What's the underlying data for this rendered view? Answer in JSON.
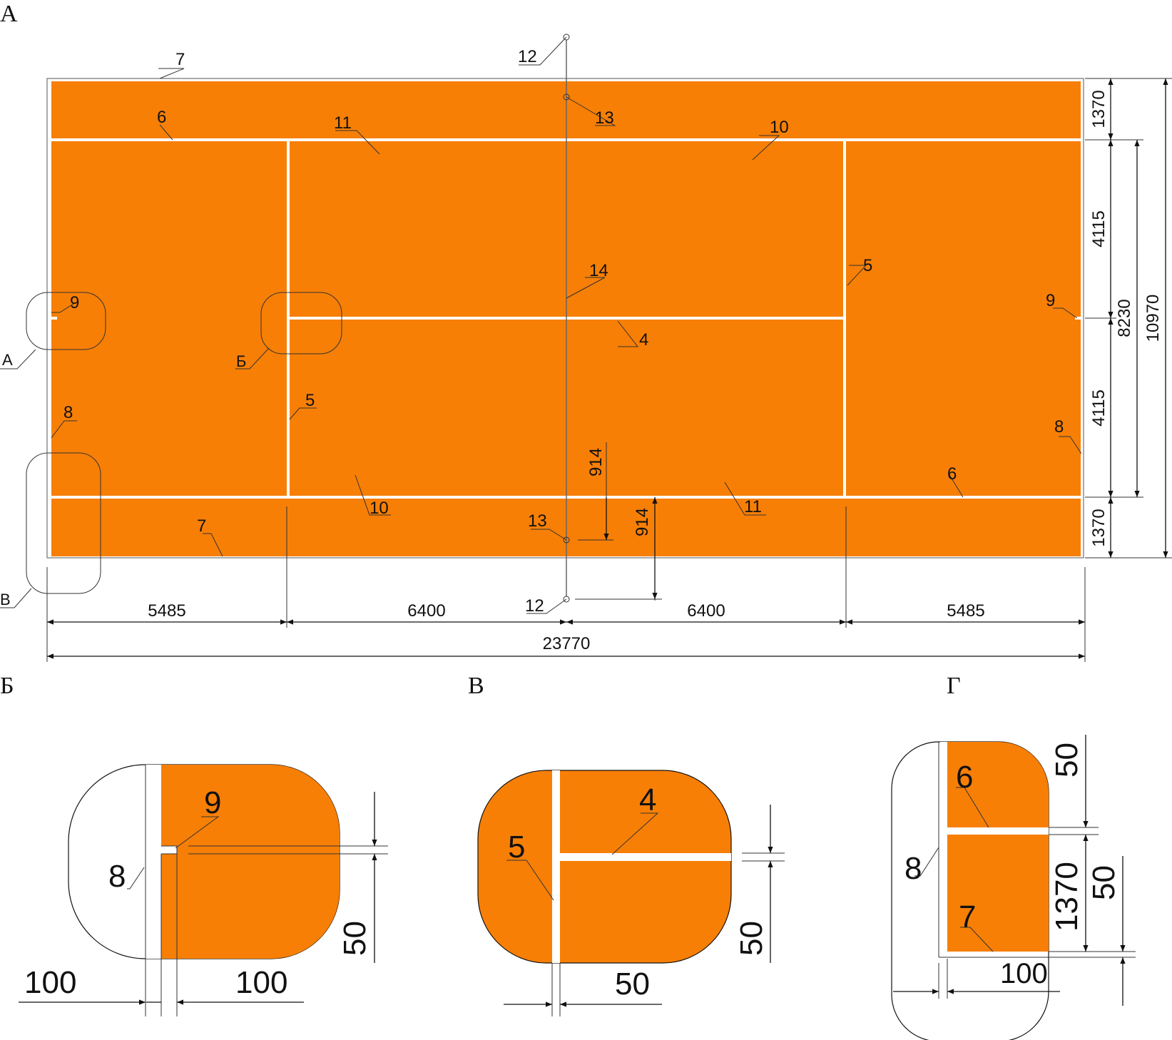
{
  "colors": {
    "court": "#f77f06",
    "lines": "#ffffff",
    "ink": "#111111"
  },
  "sections": {
    "a": "А",
    "b": "Б",
    "v": "В",
    "g": "Г"
  },
  "callouts": {
    "a": "А",
    "b": "Б",
    "v": "В"
  },
  "main": {
    "labels": {
      "l4": "4",
      "l5a": "5",
      "l5b": "5",
      "l6a": "6",
      "l6b": "6",
      "l7a": "7",
      "l7b": "7",
      "l8a": "8",
      "l8b": "8",
      "l9a": "9",
      "l9b": "9",
      "l10a": "10",
      "l10b": "10",
      "l11a": "11",
      "l11b": "11",
      "l12a": "12",
      "l12b": "12",
      "l13a": "13",
      "l13b": "13",
      "l14": "14"
    },
    "dims": {
      "d5485a": "5485",
      "d6400a": "6400",
      "d6400b": "6400",
      "d5485b": "5485",
      "d23770": "23770",
      "d1370a": "1370",
      "d4115a": "4115",
      "d4115b": "4115",
      "d1370b": "1370",
      "d8230": "8230",
      "d10970": "10970",
      "d914a": "914",
      "d914b": "914"
    }
  },
  "detail_b": {
    "l8": "8",
    "l9": "9",
    "d50": "50",
    "d100a": "100",
    "d100b": "100"
  },
  "detail_v": {
    "l4": "4",
    "l5": "5",
    "d50a": "50",
    "d50b": "50"
  },
  "detail_g": {
    "l6": "6",
    "l7": "7",
    "l8": "8",
    "d50a": "50",
    "d50b": "50",
    "d1370": "1370",
    "d100": "100"
  }
}
